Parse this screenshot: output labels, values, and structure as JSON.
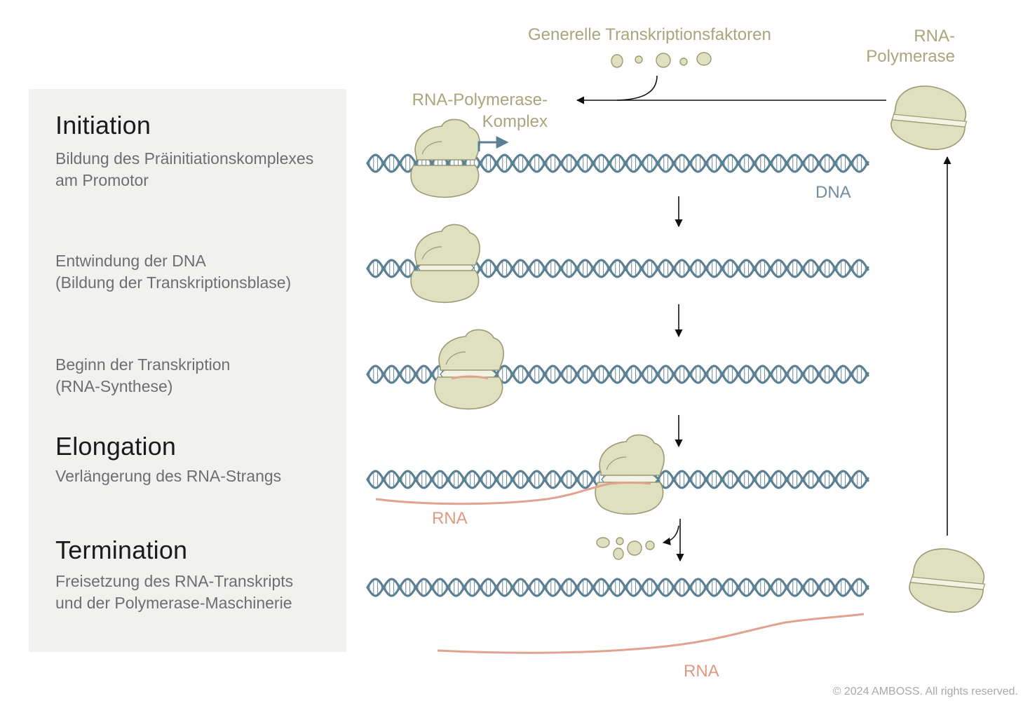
{
  "phases": {
    "initiation": "Initiation",
    "elongation": "Elongation",
    "termination": "Termination"
  },
  "steps": {
    "preinitiation": [
      "Bildung des Präinitiationskomplexes",
      "am Promotor"
    ],
    "unwinding": [
      "Entwindung der DNA",
      "(Bildung der Transkriptionsblase)"
    ],
    "synthesis_start": [
      "Beginn der Transkription",
      "(RNA-Synthese)"
    ],
    "elongation": "Verlängerung des RNA-Strangs",
    "release": [
      "Freisetzung des RNA-Transkripts",
      "und der Polymerase-Maschinerie"
    ]
  },
  "labels": {
    "general_factors": "Generelle Transkriptionsfaktoren",
    "rna_polymerase": [
      "RNA-",
      "Polymerase"
    ],
    "polymerase_complex": [
      "RNA-Polymerase-",
      "Komplex"
    ],
    "dna": "DNA",
    "rna_elongation": "RNA",
    "rna_termination": "RNA"
  },
  "copyright": "© 2024 AMBOSS. All rights reserved.",
  "colors": {
    "dna": "#5b8093",
    "polymerase": "#dfe0c0",
    "polymerase_outline": "#9a9a72",
    "rna": "#e1a38f",
    "label_olive": "#a8a67c",
    "panel": "#f1f2f0"
  }
}
